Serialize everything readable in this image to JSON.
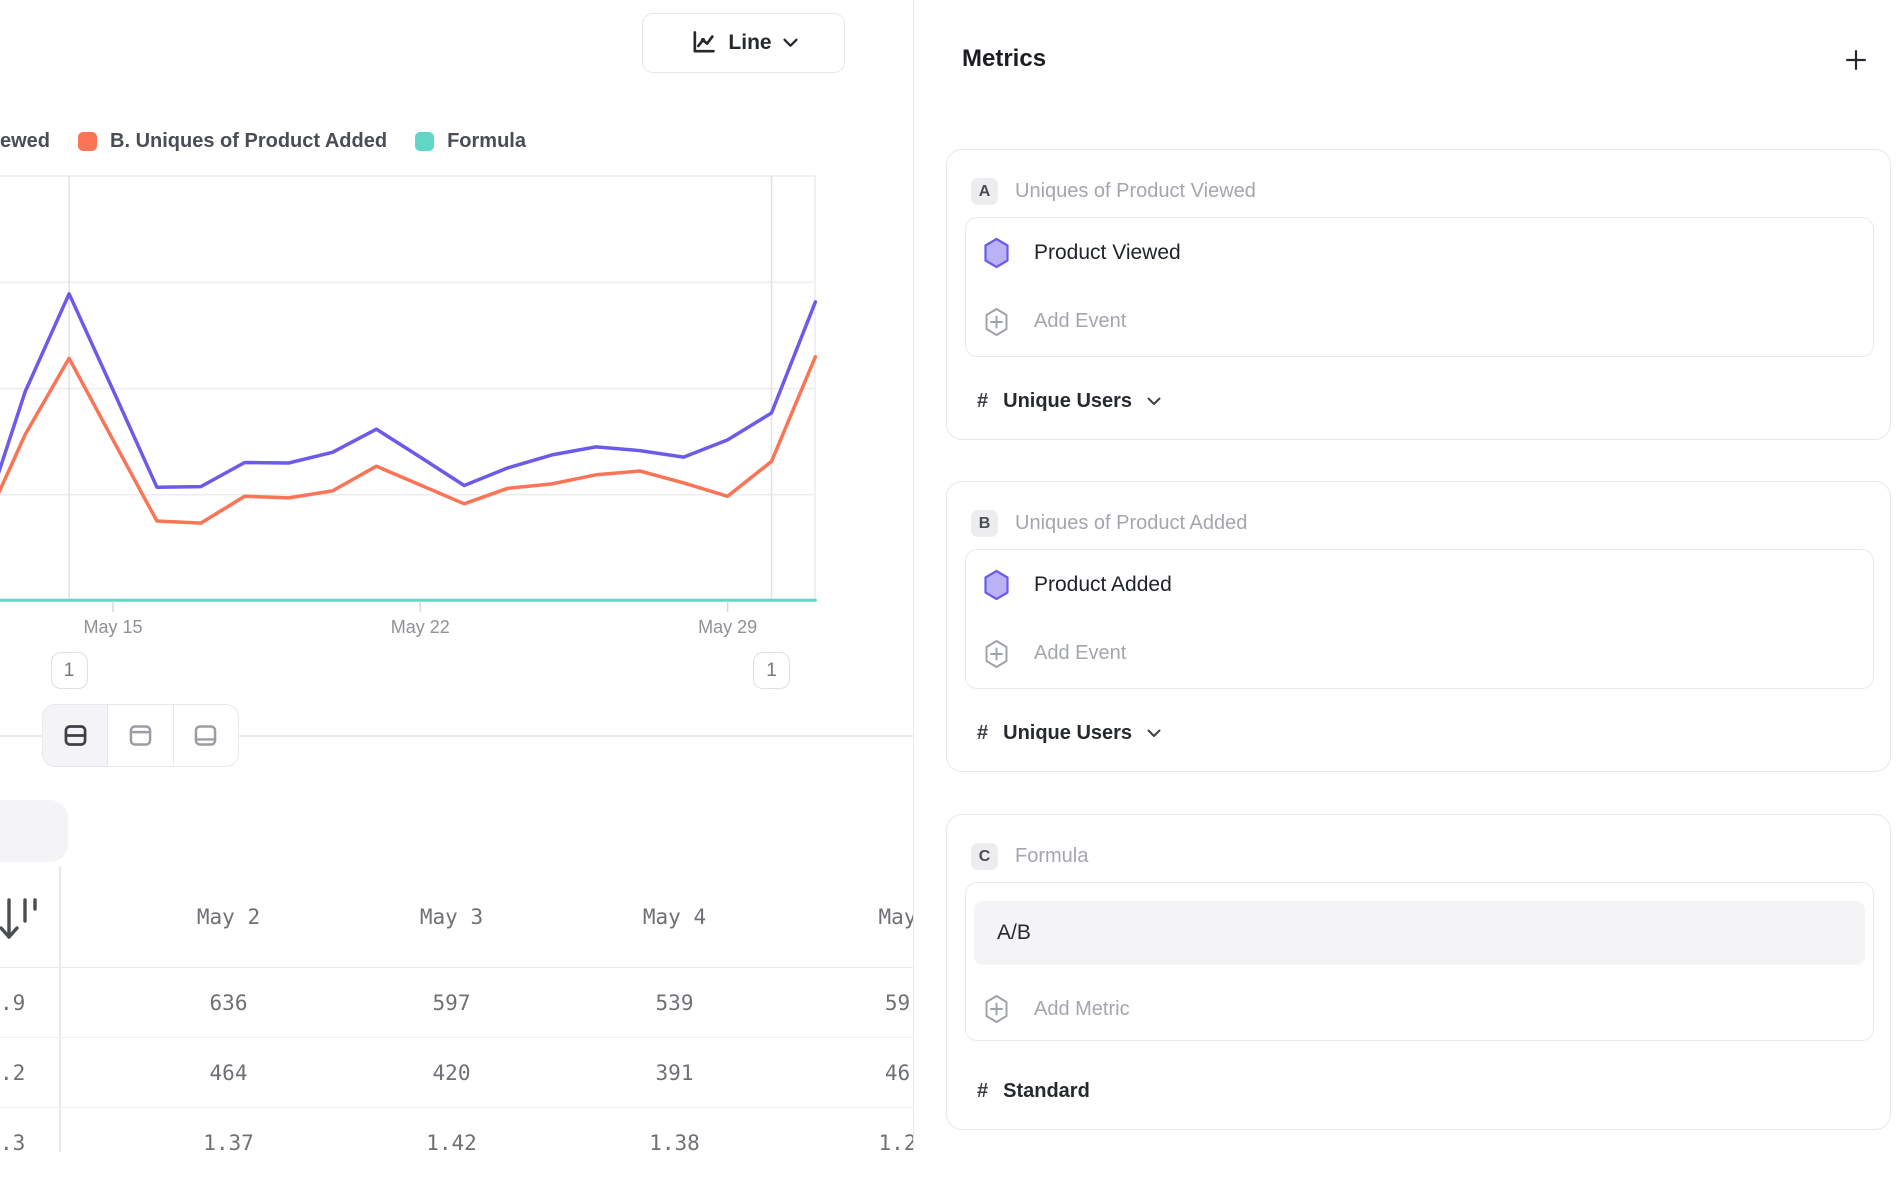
{
  "chart_header": {
    "chart_type_label": "Line"
  },
  "legend": {
    "items": [
      {
        "label": "ewed",
        "color": null
      },
      {
        "label": "B. Uniques of Product Added",
        "color": "#FB7456"
      },
      {
        "label": "Formula",
        "color": "#5FD7C6"
      }
    ]
  },
  "chart_data": {
    "type": "line",
    "title": "",
    "xlabel": "",
    "ylabel": "",
    "grid": "horizontal",
    "legend_position": "top",
    "x_unit": "day of May",
    "days": [
      12,
      13,
      14,
      15,
      16,
      17,
      18,
      19,
      20,
      21,
      22,
      23,
      24,
      25,
      26,
      27,
      28,
      29,
      30,
      31
    ],
    "x_tick_labels": [
      "May 15",
      "May 22",
      "May 29"
    ],
    "x_tick_days": [
      15,
      22,
      29
    ],
    "ylim": [
      0,
      790
    ],
    "y_gridline_spacing_units": 200,
    "series": [
      {
        "name": "A. Uniques of Product Viewed",
        "color": "#6C5BE8",
        "values": [
          140,
          390,
          572,
          393,
          212,
          213,
          258,
          257,
          277,
          320,
          268,
          215,
          248,
          272,
          287,
          280,
          268,
          300,
          350,
          557
        ]
      },
      {
        "name": "B. Uniques of Product Added",
        "color": "#FB7456",
        "values": [
          130,
          310,
          452,
          300,
          149,
          145,
          195,
          192,
          205,
          251,
          216,
          181,
          210,
          218,
          235,
          242,
          220,
          195,
          260,
          455
        ]
      },
      {
        "name": "Formula",
        "color": "#5FD7C6",
        "values": [
          1.37,
          1.37,
          1.37,
          1.37,
          1.37,
          1.37,
          1.37,
          1.37,
          1.37,
          1.37,
          1.37,
          1.37,
          1.37,
          1.37,
          1.37,
          1.37,
          1.37,
          1.37,
          1.37,
          1.37
        ]
      }
    ],
    "annotations": [
      {
        "label": "1",
        "day": 14
      },
      {
        "label": "1",
        "day": 30
      }
    ]
  },
  "view_toggle": {
    "options": [
      "split-view",
      "table-top-view",
      "table-bottom-view"
    ],
    "active_index": 0
  },
  "table": {
    "columns": [
      "May 2",
      "May 3",
      "May 4",
      "May"
    ],
    "frozen_fragments": [
      ".9",
      ".2",
      ".3"
    ],
    "rows": [
      [
        "636",
        "597",
        "539",
        "59"
      ],
      [
        "464",
        "420",
        "391",
        "46"
      ],
      [
        "1.37",
        "1.42",
        "1.38",
        "1.2"
      ]
    ]
  },
  "metrics_panel": {
    "title": "Metrics",
    "cards": [
      {
        "badge": "A",
        "title": "Uniques of Product Viewed",
        "event": "Product Viewed",
        "add_label": "Add Event",
        "measure_prefix": "#",
        "measure": "Unique Users"
      },
      {
        "badge": "B",
        "title": "Uniques of Product Added",
        "event": "Product Added",
        "add_label": "Add Event",
        "measure_prefix": "#",
        "measure": "Unique Users"
      },
      {
        "badge": "C",
        "title": "Formula",
        "formula": "A/B",
        "add_label": "Add Metric",
        "measure_prefix": "#",
        "measure": "Standard"
      }
    ]
  },
  "colors": {
    "accent_purple": "#6C5BE8",
    "accent_coral": "#FB7456",
    "accent_teal": "#5FD7C6",
    "hexagon_fill": "#B9B2F4",
    "gridline": "#ececef",
    "annotation_line": "#e2e3e7"
  }
}
